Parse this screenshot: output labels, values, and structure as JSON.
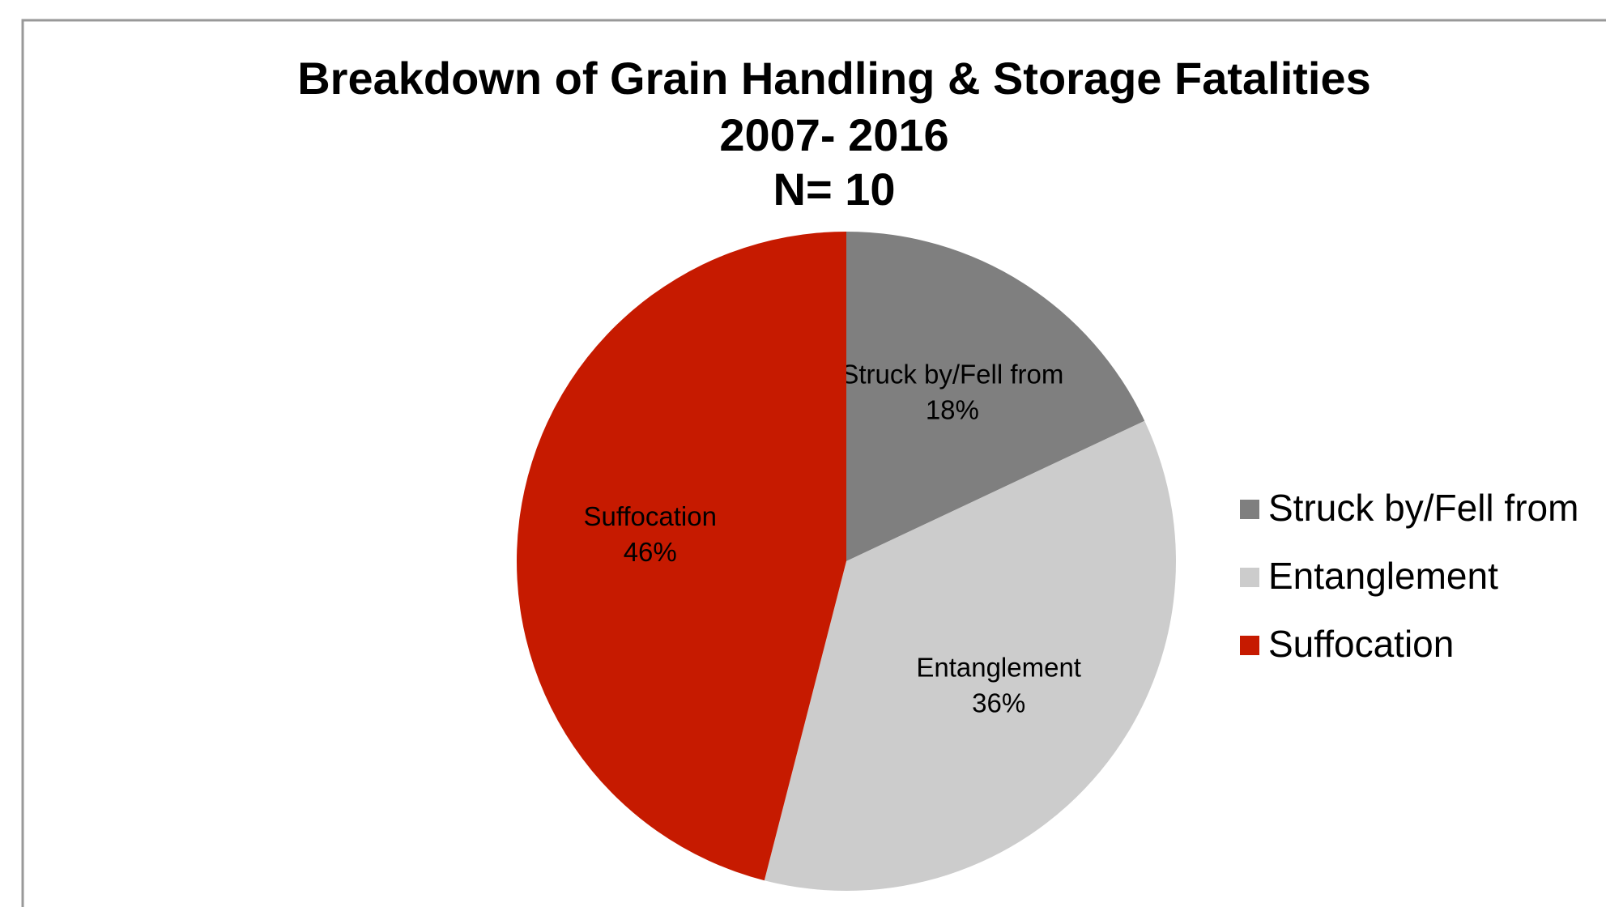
{
  "chart_data": {
    "type": "pie",
    "title": "Breakdown of Grain Handling & Storage Fatalities",
    "subtitle": [
      "2007- 2016",
      "N= 10"
    ],
    "categories": [
      "Struck by/Fell from",
      "Entanglement",
      "Suffocation"
    ],
    "values": [
      18,
      36,
      46
    ],
    "value_labels": [
      "18%",
      "36%",
      "46%"
    ],
    "colors": [
      "#7f7f7f",
      "#cccccc",
      "#c61a00"
    ],
    "legend": "right"
  }
}
